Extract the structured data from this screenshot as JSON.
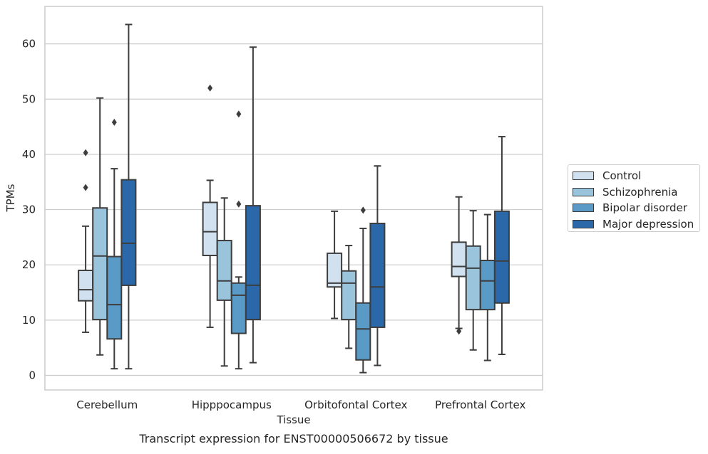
{
  "chart_data": {
    "type": "box",
    "title": "",
    "caption": "Transcript expression for ENST00000506672 by tissue",
    "xlabel": "Tissue",
    "ylabel": "TPMs",
    "ylim": [
      -2.5,
      66.5
    ],
    "yticks": [
      0,
      10,
      20,
      30,
      40,
      50,
      60
    ],
    "ytick_labels": [
      "0",
      "10",
      "20",
      "30",
      "40",
      "50",
      "60"
    ],
    "grid": "horizontal",
    "legend_position": "right",
    "categories": [
      "Cerebellum",
      "Hipppocampus",
      "Orbitofontal Cortex",
      "Prefrontal Cortex"
    ],
    "series": [
      {
        "name": "Control",
        "color": "#d1e1f0",
        "boxes": [
          {
            "whislo": 7.8,
            "q1": 13.5,
            "med": 15.5,
            "q3": 19.0,
            "whishi": 27.0,
            "fliers": [
              34.0,
              40.3
            ]
          },
          {
            "whislo": 8.7,
            "q1": 21.7,
            "med": 26.0,
            "q3": 31.3,
            "whishi": 35.3,
            "fliers": [
              52.0
            ]
          },
          {
            "whislo": 10.3,
            "q1": 16.0,
            "med": 16.7,
            "q3": 22.1,
            "whishi": 29.7,
            "fliers": []
          },
          {
            "whislo": 8.5,
            "q1": 17.9,
            "med": 19.7,
            "q3": 24.1,
            "whishi": 32.3,
            "fliers": [
              8.0
            ]
          }
        ]
      },
      {
        "name": "Schizophrenia",
        "color": "#9ac3dc",
        "boxes": [
          {
            "whislo": 3.7,
            "q1": 10.1,
            "med": 21.6,
            "q3": 30.3,
            "whishi": 50.2,
            "fliers": []
          },
          {
            "whislo": 1.7,
            "q1": 13.6,
            "med": 17.1,
            "q3": 24.4,
            "whishi": 32.1,
            "fliers": []
          },
          {
            "whislo": 4.9,
            "q1": 10.1,
            "med": 16.7,
            "q3": 18.9,
            "whishi": 23.5,
            "fliers": []
          },
          {
            "whislo": 4.6,
            "q1": 11.9,
            "med": 19.4,
            "q3": 23.4,
            "whishi": 29.8,
            "fliers": []
          }
        ]
      },
      {
        "name": "Bipolar disorder",
        "color": "#5a9ac6",
        "boxes": [
          {
            "whislo": 1.2,
            "q1": 6.6,
            "med": 12.8,
            "q3": 21.5,
            "whishi": 37.4,
            "fliers": [
              45.8
            ]
          },
          {
            "whislo": 1.2,
            "q1": 7.6,
            "med": 14.5,
            "q3": 16.7,
            "whishi": 17.8,
            "fliers": [
              31.0,
              47.3
            ]
          },
          {
            "whislo": 0.5,
            "q1": 2.8,
            "med": 8.4,
            "q3": 13.1,
            "whishi": 26.6,
            "fliers": [
              29.9
            ]
          },
          {
            "whislo": 2.7,
            "q1": 11.9,
            "med": 17.1,
            "q3": 20.8,
            "whishi": 29.1,
            "fliers": []
          }
        ]
      },
      {
        "name": "Major depression",
        "color": "#2a68aa",
        "boxes": [
          {
            "whislo": 1.2,
            "q1": 16.3,
            "med": 23.9,
            "q3": 35.4,
            "whishi": 63.5,
            "fliers": []
          },
          {
            "whislo": 2.3,
            "q1": 10.1,
            "med": 16.3,
            "q3": 30.7,
            "whishi": 59.4,
            "fliers": []
          },
          {
            "whislo": 1.8,
            "q1": 8.7,
            "med": 16.0,
            "q3": 27.5,
            "whishi": 37.9,
            "fliers": []
          },
          {
            "whislo": 3.8,
            "q1": 13.1,
            "med": 20.7,
            "q3": 29.7,
            "whishi": 43.2,
            "fliers": []
          }
        ]
      }
    ]
  }
}
